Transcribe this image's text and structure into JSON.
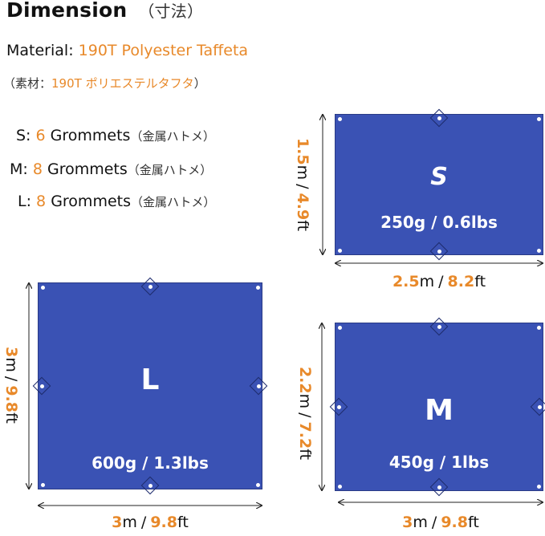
{
  "title": {
    "text": "Dimension",
    "jp": "（寸法）"
  },
  "material": {
    "label": "Material:",
    "value": "190T Polyester Taffeta"
  },
  "material_jp": {
    "open": "（素材：",
    "value": "190T ポリエステルタフタ",
    "close": "）"
  },
  "grommets": [
    {
      "size": "S:",
      "count": "6",
      "label": "Grommets",
      "jp": "（金属ハトメ）"
    },
    {
      "size": "M:",
      "count": "8",
      "label": "Grommets",
      "jp": "（金属ハトメ）"
    },
    {
      "size": "L:",
      "count": "8",
      "label": "Grommets",
      "jp": "（金属ハトメ）"
    }
  ],
  "separator": "/",
  "tarps": {
    "s": {
      "name": "S",
      "weight": "250g / 0.6lbs",
      "width": {
        "m": "2.5",
        "mu": "m",
        "ft": "8.2",
        "fu": "ft"
      },
      "height": {
        "m": "1.5",
        "mu": "m",
        "ft": "4.9",
        "fu": "ft"
      }
    },
    "l": {
      "name": "L",
      "weight": "600g / 1.3lbs",
      "width": {
        "m": "3",
        "mu": "m",
        "ft": "9.8",
        "fu": "ft"
      },
      "height": {
        "m": "3",
        "mu": "m",
        "ft": "9.8",
        "fu": "ft"
      }
    },
    "m": {
      "name": "M",
      "weight": "450g / 1lbs",
      "width": {
        "m": "3",
        "mu": "m",
        "ft": "9.8",
        "fu": "ft"
      },
      "height": {
        "m": "2.2",
        "mu": "m",
        "ft": "7.2",
        "fu": "ft"
      }
    }
  },
  "colors": {
    "tarp": "#3a52b4",
    "accent": "#e8892a",
    "text": "#111111"
  }
}
